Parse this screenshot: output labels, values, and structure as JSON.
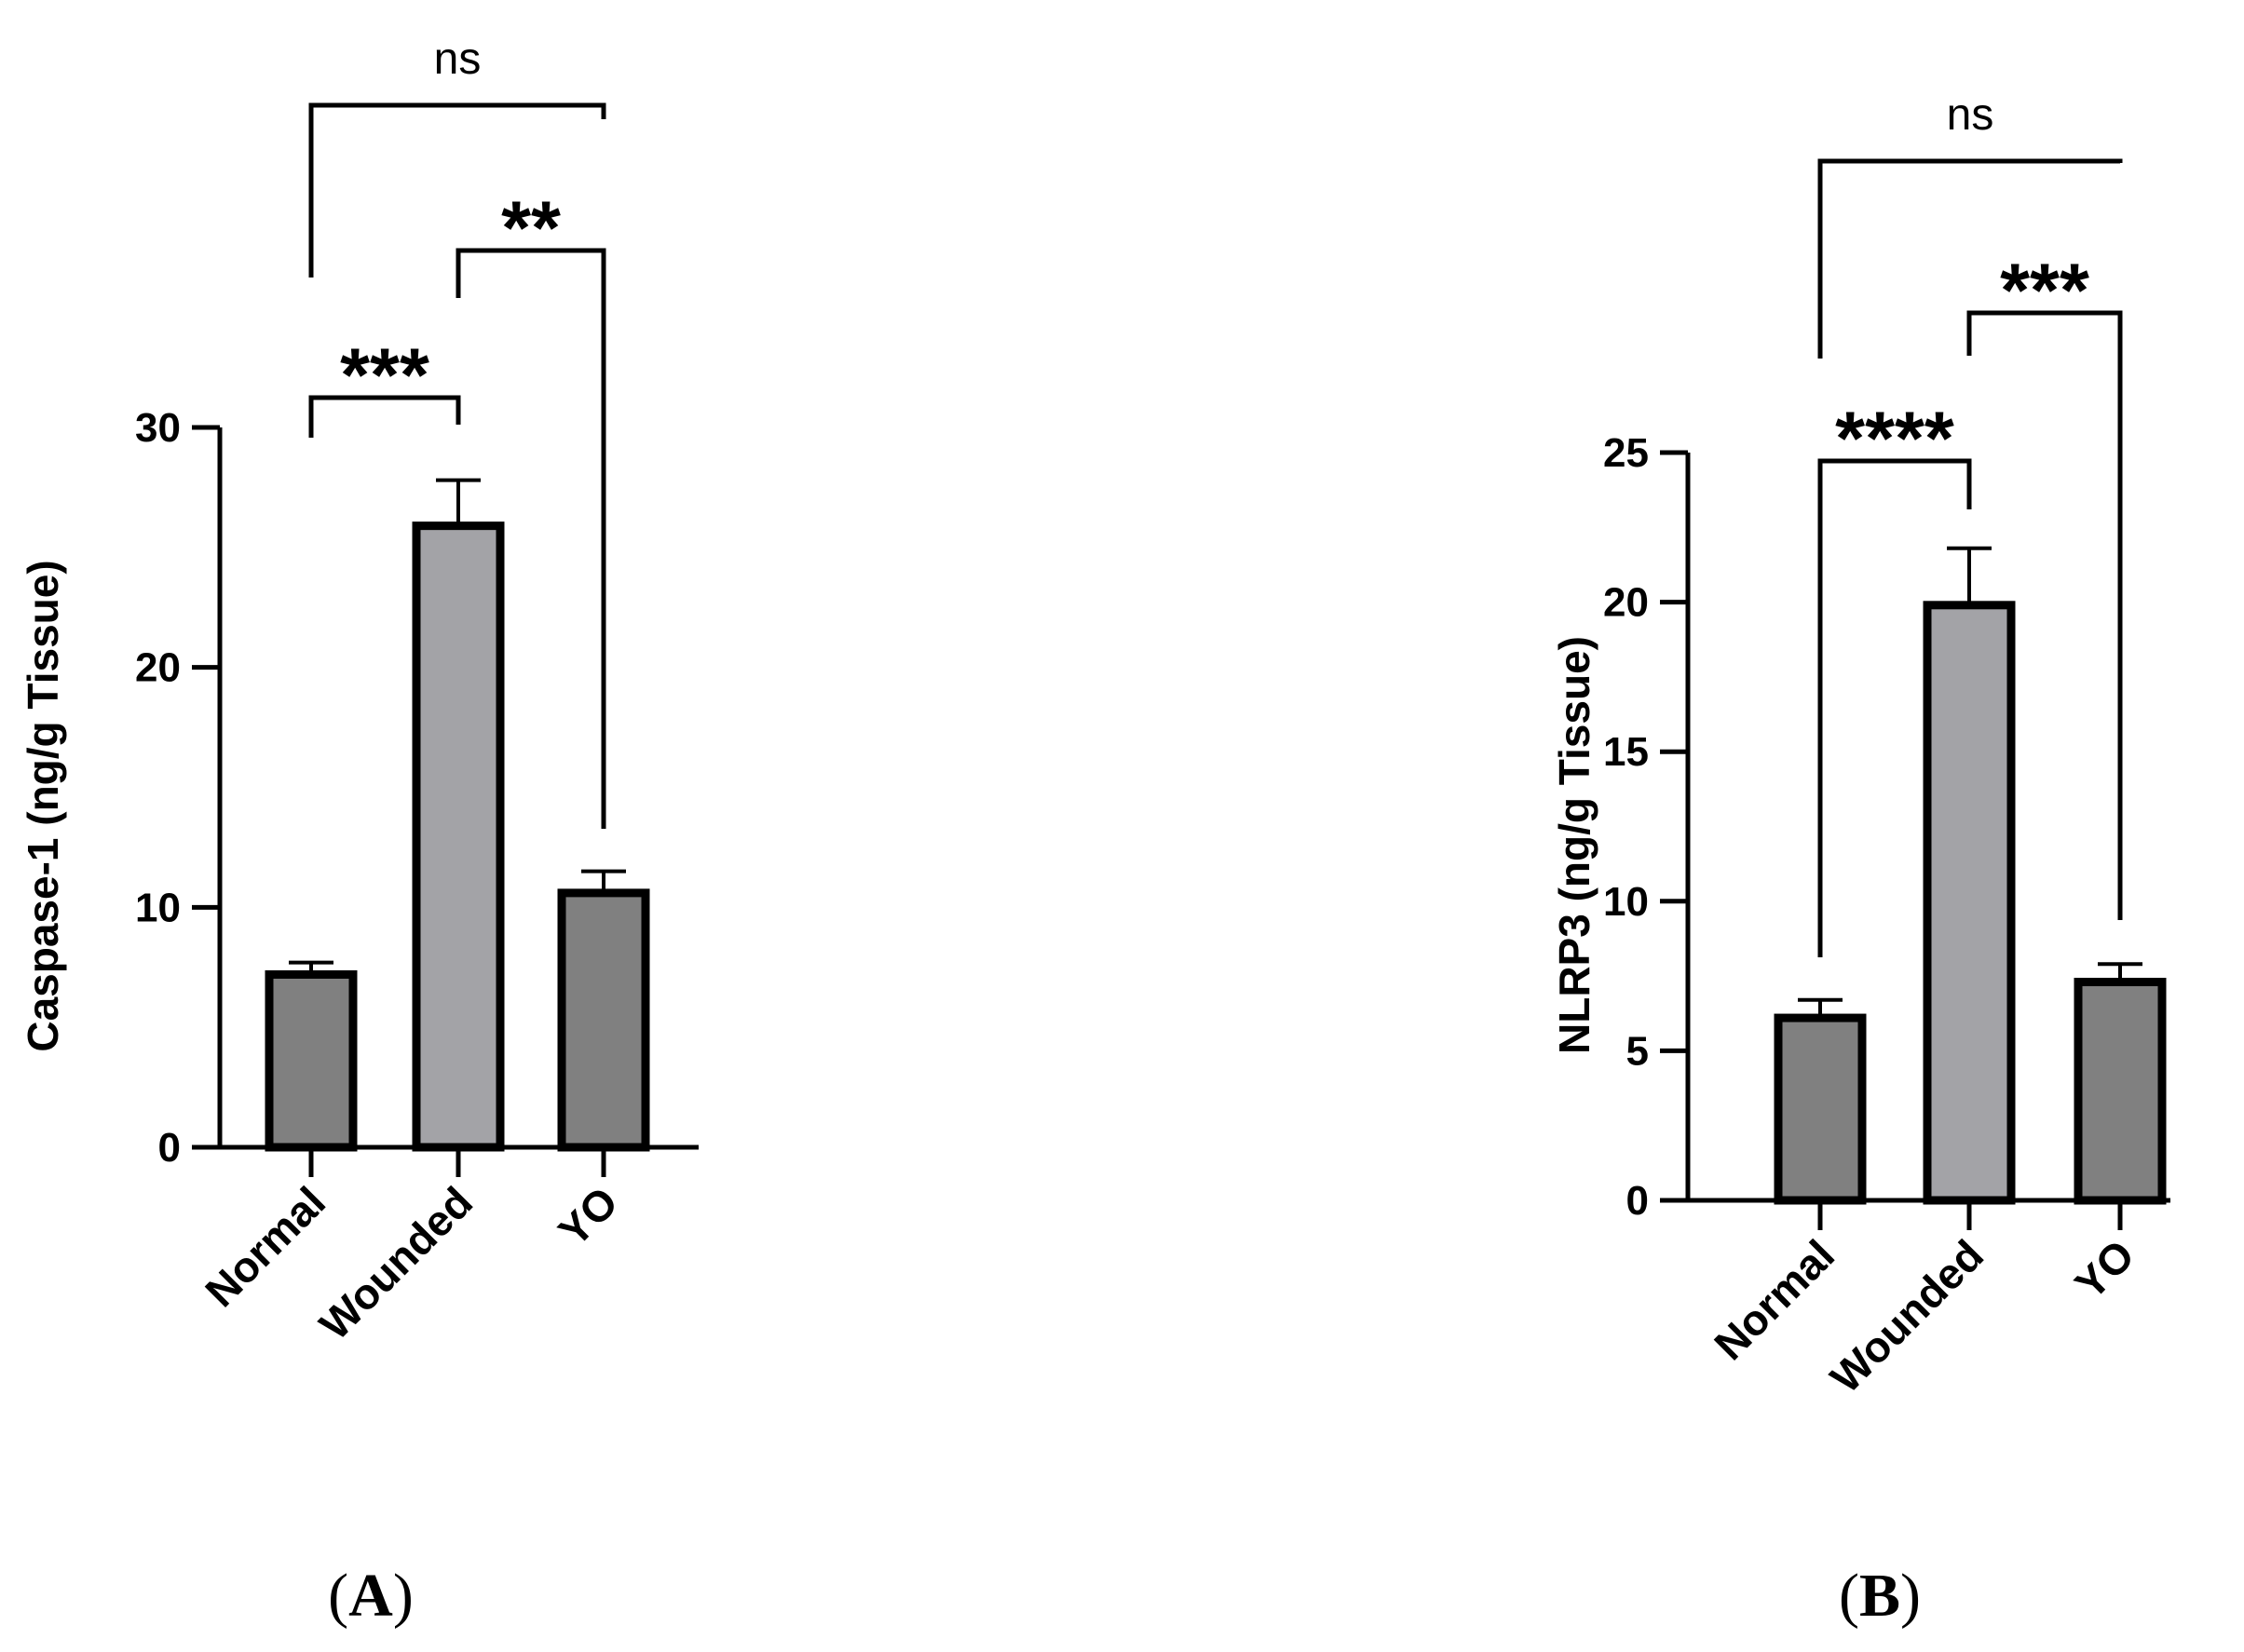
{
  "chart_data": [
    {
      "type": "bar",
      "panel_label": "A",
      "categories": [
        "Normal",
        "Wounded",
        "YO"
      ],
      "values": [
        7.2,
        25.9,
        10.6
      ],
      "errors": [
        0.5,
        1.9,
        0.9
      ],
      "bar_colors": [
        "#808080",
        "#a3a3a7",
        "#808080"
      ],
      "ylabel": "Caspase-1 (ng/g Tissue)",
      "xlabel": "",
      "ylim": [
        0,
        30
      ],
      "yticks": [
        0,
        10,
        20,
        30
      ],
      "comparisons": [
        {
          "from": 0,
          "to": 1,
          "label": "***"
        },
        {
          "from": 1,
          "to": 2,
          "label": "**"
        },
        {
          "from": 0,
          "to": 2,
          "label": "ns"
        }
      ]
    },
    {
      "type": "bar",
      "panel_label": "B",
      "categories": [
        "Normal",
        "Wounded",
        "YO"
      ],
      "values": [
        6.1,
        19.9,
        7.3
      ],
      "errors": [
        0.6,
        1.9,
        0.6
      ],
      "bar_colors": [
        "#808080",
        "#a3a3a7",
        "#808080"
      ],
      "ylabel": "NLRP3 (ng/g Tissue)",
      "xlabel": "",
      "ylim": [
        0,
        25
      ],
      "yticks": [
        0,
        5,
        10,
        15,
        20,
        25
      ],
      "comparisons": [
        {
          "from": 0,
          "to": 1,
          "label": "****"
        },
        {
          "from": 1,
          "to": 2,
          "label": "***"
        },
        {
          "from": 0,
          "to": 2,
          "label": "ns"
        }
      ]
    }
  ]
}
